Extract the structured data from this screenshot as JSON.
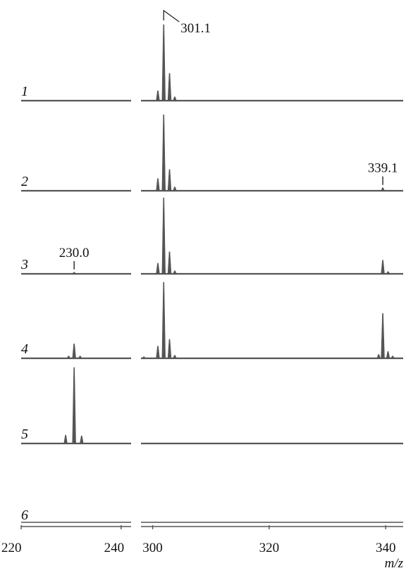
{
  "chart_data": {
    "type": "line",
    "title": "",
    "xlabel": "m/z",
    "ylabel": "",
    "axis_break": {
      "left_panel_xlim": [
        220,
        242
      ],
      "right_panel_xlim": [
        298,
        343
      ]
    },
    "xticks": [
      220,
      240,
      300,
      320,
      340
    ],
    "ylim": [
      0,
      1
    ],
    "grid": false,
    "legend": "none",
    "line_color": "#555555",
    "series": [
      {
        "row_label": "1",
        "peaks": [
          {
            "mz": 300.9,
            "intensity": 0.13
          },
          {
            "mz": 301.9,
            "intensity": 1.0
          },
          {
            "mz": 302.9,
            "intensity": 0.36
          },
          {
            "mz": 303.8,
            "intensity": 0.05
          }
        ]
      },
      {
        "row_label": "2",
        "peaks": [
          {
            "mz": 300.9,
            "intensity": 0.16
          },
          {
            "mz": 301.9,
            "intensity": 1.0
          },
          {
            "mz": 302.9,
            "intensity": 0.28
          },
          {
            "mz": 303.8,
            "intensity": 0.05
          },
          {
            "mz": 339.5,
            "intensity": 0.04
          }
        ]
      },
      {
        "row_label": "3",
        "peaks": [
          {
            "mz": 230.6,
            "intensity": 0.02
          },
          {
            "mz": 300.9,
            "intensity": 0.14
          },
          {
            "mz": 301.9,
            "intensity": 1.0
          },
          {
            "mz": 302.9,
            "intensity": 0.29
          },
          {
            "mz": 303.8,
            "intensity": 0.04
          },
          {
            "mz": 339.5,
            "intensity": 0.18
          },
          {
            "mz": 340.4,
            "intensity": 0.03
          }
        ]
      },
      {
        "row_label": "4",
        "peaks": [
          {
            "mz": 229.5,
            "intensity": 0.03
          },
          {
            "mz": 230.6,
            "intensity": 0.19
          },
          {
            "mz": 231.8,
            "intensity": 0.03
          },
          {
            "mz": 298.5,
            "intensity": 0.02
          },
          {
            "mz": 300.9,
            "intensity": 0.16
          },
          {
            "mz": 301.9,
            "intensity": 1.0
          },
          {
            "mz": 302.9,
            "intensity": 0.25
          },
          {
            "mz": 303.8,
            "intensity": 0.04
          },
          {
            "mz": 338.8,
            "intensity": 0.05
          },
          {
            "mz": 339.5,
            "intensity": 0.59
          },
          {
            "mz": 340.4,
            "intensity": 0.09
          },
          {
            "mz": 341.2,
            "intensity": 0.03
          }
        ]
      },
      {
        "row_label": "5",
        "peaks": [
          {
            "mz": 228.9,
            "intensity": 0.11
          },
          {
            "mz": 230.6,
            "intensity": 1.0
          },
          {
            "mz": 232.1,
            "intensity": 0.1
          }
        ]
      },
      {
        "row_label": "6",
        "peaks": []
      }
    ],
    "annotations": [
      {
        "text": "301.1",
        "row": 0,
        "mz": 301.9
      },
      {
        "text": "339.1",
        "row": 1,
        "mz": 339.5
      },
      {
        "text": "230.0",
        "row": 2,
        "mz": 230.6
      }
    ]
  }
}
